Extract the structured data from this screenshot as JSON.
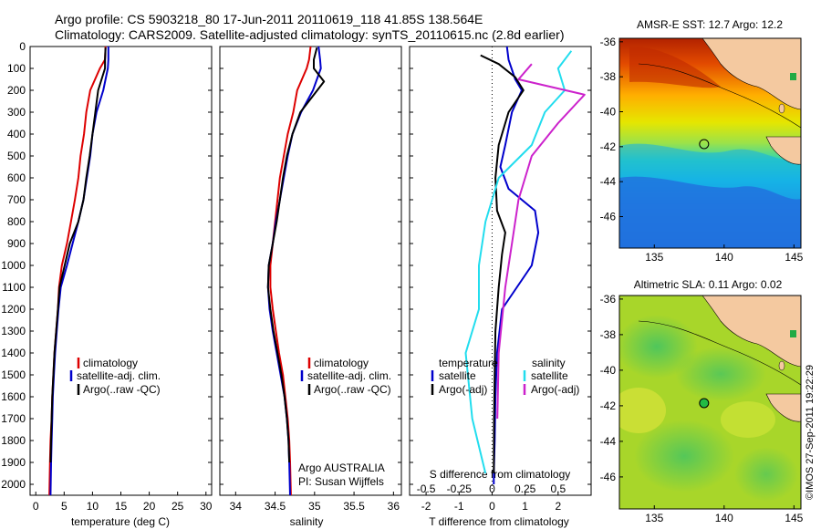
{
  "header": {
    "title_line1": "Argo profile: CS 5903218_80 17-Jun-2011 20110619_118 41.85S 138.564E",
    "title_line2": "Climatology: CARS2009. Satellite-adjusted climatology: synTS_20110615.nc (2.8d earlier)"
  },
  "colors": {
    "climatology": "#dd0000",
    "satellite": "#0000cc",
    "argo": "#000000",
    "salinity_satellite": "#22ddee",
    "salinity_argo": "#cc22cc",
    "land": "#f4c9a0"
  },
  "watermark": "©IMOS 27-Sep-2011 19:22:29",
  "chart_data": [
    {
      "type": "line",
      "id": "temperature",
      "xlabel": "temperature (deg C)",
      "xlim": [
        -1,
        31
      ],
      "ylim": [
        0,
        2050
      ],
      "y_reversed": true,
      "xticks": [
        0,
        5,
        10,
        15,
        20,
        25,
        30
      ],
      "yticks": [
        0,
        100,
        200,
        300,
        400,
        500,
        600,
        700,
        800,
        900,
        1000,
        1100,
        1200,
        1300,
        1400,
        1500,
        1600,
        1700,
        1800,
        1900,
        2000
      ],
      "legend": [
        "climatology",
        "satellite-adj. clim.",
        "Argo(..raw -QC)"
      ],
      "series": [
        {
          "name": "climatology",
          "color": "#dd0000",
          "x": [
            12.3,
            12.2,
            11.3,
            9.6,
            8.9,
            8.5,
            7.9,
            7.5,
            6.9,
            6.2,
            5.5,
            4.6,
            4.1,
            3.9,
            3.6,
            3.3,
            3.1,
            2.9,
            2.8,
            2.6,
            2.5,
            2.4
          ],
          "y": [
            0,
            60,
            100,
            200,
            300,
            400,
            500,
            600,
            700,
            800,
            900,
            1000,
            1100,
            1200,
            1300,
            1400,
            1500,
            1600,
            1700,
            1800,
            1900,
            2050
          ]
        },
        {
          "name": "satellite-adj. clim.",
          "color": "#0000cc",
          "x": [
            12.8,
            12.8,
            12.7,
            11.9,
            10.7,
            10.0,
            9.6,
            9.0,
            8.4,
            7.5,
            6.5,
            5.5,
            4.4,
            4.0,
            3.7,
            3.4,
            3.2,
            3.0,
            2.9,
            2.8,
            2.7,
            2.6
          ],
          "y": [
            0,
            60,
            100,
            200,
            300,
            400,
            500,
            600,
            700,
            800,
            900,
            1000,
            1100,
            1200,
            1300,
            1400,
            1500,
            1600,
            1700,
            1800,
            1900,
            2050
          ]
        },
        {
          "name": "Argo(..raw -QC)",
          "color": "#000000",
          "x": [
            12.3,
            12.2,
            12.2,
            11.0,
            10.5,
            10.0,
            9.5,
            8.9,
            8.4,
            7.5,
            6.0,
            5.1,
            4.2,
            3.9,
            3.6,
            3.3,
            3.1,
            2.9,
            2.8,
            2.7,
            2.6
          ],
          "y": [
            5,
            60,
            100,
            200,
            300,
            400,
            500,
            600,
            700,
            800,
            900,
            1000,
            1100,
            1200,
            1300,
            1400,
            1500,
            1600,
            1700,
            1800,
            1900
          ]
        }
      ]
    },
    {
      "type": "line",
      "id": "salinity",
      "xlabel": "salinity",
      "xlim": [
        33.8,
        36.1
      ],
      "ylim": [
        0,
        2050
      ],
      "y_reversed": true,
      "xticks": [
        34,
        34.5,
        35,
        35.5,
        36
      ],
      "xtick_labels": [
        "34",
        "34.5",
        "35",
        "35.5",
        "36"
      ],
      "legend": [
        "climatology",
        "satellite-adj. clim.",
        "Argo(..raw -QC)"
      ],
      "annotation": [
        "Argo AUSTRALIA",
        "PI: Susan Wijffels"
      ],
      "series": [
        {
          "name": "climatology",
          "color": "#dd0000",
          "x": [
            34.95,
            34.93,
            34.9,
            34.78,
            34.73,
            34.66,
            34.61,
            34.56,
            34.53,
            34.5,
            34.47,
            34.44,
            34.44,
            34.47,
            34.51,
            34.55,
            34.6,
            34.63,
            34.66,
            34.68,
            34.69,
            34.7
          ],
          "y": [
            0,
            60,
            100,
            200,
            300,
            400,
            500,
            600,
            700,
            800,
            900,
            1000,
            1100,
            1200,
            1300,
            1400,
            1500,
            1600,
            1700,
            1800,
            1900,
            2050
          ]
        },
        {
          "name": "satellite-adj. clim.",
          "color": "#0000cc",
          "x": [
            35.05,
            35.07,
            35.08,
            34.98,
            34.83,
            34.72,
            34.66,
            34.61,
            34.56,
            34.51,
            34.47,
            34.42,
            34.41,
            34.43,
            34.47,
            34.52,
            34.57,
            34.62,
            34.65,
            34.67,
            34.68,
            34.69
          ],
          "y": [
            0,
            60,
            100,
            200,
            300,
            400,
            500,
            600,
            700,
            800,
            900,
            1000,
            1100,
            1200,
            1300,
            1400,
            1500,
            1600,
            1700,
            1800,
            1900,
            2050
          ]
        },
        {
          "name": "Argo(..raw -QC)",
          "color": "#000000",
          "x": [
            35.03,
            34.99,
            34.99,
            35.12,
            34.82,
            34.72,
            34.65,
            34.6,
            34.56,
            34.52,
            34.47,
            34.42,
            34.41,
            34.44,
            34.48,
            34.53,
            34.58,
            34.62,
            34.65,
            34.67,
            34.68
          ],
          "y": [
            5,
            60,
            100,
            160,
            300,
            400,
            500,
            600,
            700,
            800,
            900,
            1000,
            1100,
            1200,
            1300,
            1400,
            1500,
            1600,
            1700,
            1800,
            1900
          ]
        }
      ]
    },
    {
      "type": "line",
      "id": "difference",
      "xlabel": "T difference from climatology",
      "xlabel_top": "S difference from climatology",
      "xlim": [
        -2.5,
        3.0
      ],
      "ylim": [
        0,
        2050
      ],
      "y_reversed": true,
      "xticks": [
        -2,
        -1,
        0,
        1,
        2
      ],
      "xtick_labels": [
        "-2",
        "-1",
        "0",
        "1",
        "2"
      ],
      "xticks_salinity": [
        -0.5,
        -0.25,
        0,
        0.25,
        0.5
      ],
      "xtick_labels_salinity": [
        "-0.5",
        "-0.25",
        "0",
        "0.25",
        "0.5"
      ],
      "legend_temperature_title": "temperature",
      "legend_salinity_title": "salinity",
      "legend": [
        "satellite",
        "Argo(-adj)",
        "satellite",
        "Argo(-adj)"
      ],
      "series": [
        {
          "name": "satellite",
          "group": "temperature",
          "color": "#0000cc",
          "x": [
            0.45,
            0.5,
            0.7,
            0.9,
            0.6,
            0.4,
            0.25,
            0.5,
            1.3,
            1.4,
            1.2,
            0.3,
            0.15,
            0.1,
            0.08,
            0.05,
            0.05
          ],
          "y": [
            0,
            60,
            150,
            200,
            300,
            450,
            550,
            650,
            750,
            850,
            1000,
            1200,
            1400,
            1600,
            1800,
            1950,
            2000
          ]
        },
        {
          "name": "Argo(-adj)",
          "group": "temperature",
          "color": "#000000",
          "x": [
            -0.35,
            0.2,
            0.7,
            0.95,
            0.5,
            0.2,
            0.1,
            0.15,
            0.4,
            0.3,
            0.2,
            0.1,
            0.08,
            0.06,
            0.05
          ],
          "y": [
            40,
            80,
            140,
            200,
            300,
            450,
            600,
            750,
            850,
            950,
            1100,
            1300,
            1500,
            1700,
            1950
          ]
        },
        {
          "name": "satellite",
          "group": "salinity",
          "color": "#22ddee",
          "x": [
            0.6,
            0.5,
            0.55,
            0.4,
            0.3,
            0.05,
            -0.05,
            -0.1,
            -0.1,
            -0.2,
            -0.15,
            -0.05
          ],
          "y": [
            20,
            100,
            200,
            300,
            450,
            600,
            800,
            1000,
            1200,
            1400,
            1700,
            1950
          ]
        },
        {
          "name": "Argo(-adj)",
          "group": "salinity",
          "color": "#cc22cc",
          "x": [
            0.3,
            0.2,
            0.7,
            0.5,
            0.3,
            0.2,
            0.15,
            0.1,
            0.05,
            0.04
          ],
          "y": [
            80,
            150,
            220,
            350,
            500,
            700,
            900,
            1100,
            1400,
            1700
          ]
        }
      ]
    },
    {
      "type": "heatmap",
      "id": "sst-map",
      "title": "AMSR-E SST: 12.7 Argo: 12.2",
      "xticks": [
        135,
        140,
        145
      ],
      "yticks": [
        -36,
        -38,
        -40,
        -42,
        -44,
        -46
      ],
      "xlim": [
        132.5,
        145.5
      ],
      "ylim": [
        -47.8,
        -35.8
      ],
      "marker": {
        "lon": 138.564,
        "lat": -41.85
      }
    },
    {
      "type": "heatmap",
      "id": "sla-map",
      "title": "Altimetric SLA: 0.11 Argo: 0.02",
      "xticks": [
        135,
        140,
        145
      ],
      "yticks": [
        -36,
        -38,
        -40,
        -42,
        -44,
        -46
      ],
      "xlim": [
        132.5,
        145.5
      ],
      "ylim": [
        -47.8,
        -35.8
      ],
      "marker": {
        "lon": 138.564,
        "lat": -41.85
      }
    }
  ]
}
